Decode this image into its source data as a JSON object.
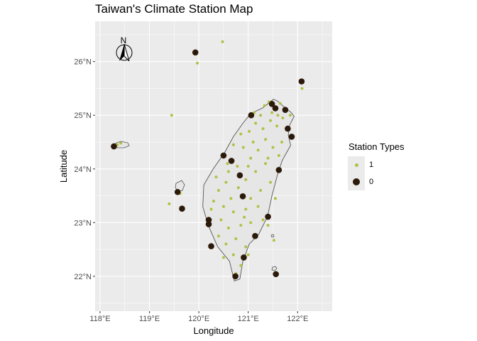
{
  "title": "Taiwan's Climate Station Map",
  "x_axis": {
    "title": "Longitude",
    "ticks": [
      "118°E",
      "119°E",
      "120°E",
      "121°E",
      "122°E"
    ]
  },
  "y_axis": {
    "title": "Latitude",
    "ticks": [
      "22°N",
      "23°N",
      "24°N",
      "25°N",
      "26°N"
    ]
  },
  "north_arrow": {
    "label": "N"
  },
  "legend": {
    "title": "Station Types",
    "items": [
      {
        "label": "1",
        "color": "#b2c045"
      },
      {
        "label": "0",
        "color": "#2b1a0a"
      }
    ]
  },
  "colors": {
    "panel": "#ebebeb",
    "grid": "#ffffff",
    "land": "#e6e6e6",
    "coast": "#555555",
    "type1": "#b2c045",
    "type0": "#2b1a0a"
  },
  "map_data": {
    "lon_range": [
      117.9,
      122.7
    ],
    "lat_range": [
      21.35,
      26.75
    ],
    "tick_lons": [
      118,
      119,
      120,
      121,
      122
    ],
    "tick_lats": [
      22,
      23,
      24,
      25,
      26
    ],
    "main_island_outline": [
      [
        121.51,
        25.3
      ],
      [
        121.6,
        25.26
      ],
      [
        121.72,
        25.16
      ],
      [
        121.86,
        25.06
      ],
      [
        121.93,
        24.98
      ],
      [
        121.84,
        24.82
      ],
      [
        121.81,
        24.63
      ],
      [
        121.86,
        24.44
      ],
      [
        121.69,
        24.16
      ],
      [
        121.6,
        23.92
      ],
      [
        121.48,
        23.5
      ],
      [
        121.39,
        23.11
      ],
      [
        121.21,
        22.78
      ],
      [
        121.02,
        22.6
      ],
      [
        120.89,
        22.28
      ],
      [
        120.83,
        21.95
      ],
      [
        120.72,
        21.91
      ],
      [
        120.62,
        22.28
      ],
      [
        120.38,
        22.55
      ],
      [
        120.19,
        22.95
      ],
      [
        120.08,
        23.3
      ],
      [
        120.1,
        23.7
      ],
      [
        120.29,
        24.0
      ],
      [
        120.52,
        24.3
      ],
      [
        120.7,
        24.6
      ],
      [
        120.89,
        24.85
      ],
      [
        121.05,
        25.03
      ],
      [
        121.3,
        25.14
      ],
      [
        121.51,
        25.3
      ]
    ],
    "stations_type0": [
      [
        119.93,
        26.17
      ],
      [
        122.08,
        25.63
      ],
      [
        121.48,
        25.21
      ],
      [
        121.55,
        25.13
      ],
      [
        121.75,
        25.1
      ],
      [
        121.06,
        25.0
      ],
      [
        121.8,
        24.75
      ],
      [
        121.88,
        24.6
      ],
      [
        120.5,
        24.25
      ],
      [
        120.66,
        24.15
      ],
      [
        120.83,
        23.88
      ],
      [
        120.89,
        23.49
      ],
      [
        121.62,
        23.98
      ],
      [
        118.28,
        24.42
      ],
      [
        119.57,
        23.57
      ],
      [
        119.66,
        23.26
      ],
      [
        120.2,
        23.05
      ],
      [
        120.25,
        22.56
      ],
      [
        121.4,
        23.11
      ],
      [
        121.14,
        22.75
      ],
      [
        120.91,
        22.35
      ],
      [
        120.74,
        22.0
      ],
      [
        121.56,
        22.04
      ],
      [
        120.2,
        22.97
      ]
    ],
    "stations_type1": [
      [
        121.42,
        25.25
      ],
      [
        121.33,
        25.18
      ],
      [
        121.12,
        25.05
      ],
      [
        121.6,
        25.0
      ],
      [
        121.7,
        24.95
      ],
      [
        121.58,
        24.8
      ],
      [
        121.45,
        24.9
      ],
      [
        121.3,
        24.75
      ],
      [
        121.15,
        24.85
      ],
      [
        121.02,
        24.7
      ],
      [
        121.35,
        24.55
      ],
      [
        121.5,
        24.4
      ],
      [
        121.68,
        24.5
      ],
      [
        121.2,
        24.35
      ],
      [
        121.05,
        24.2
      ],
      [
        120.9,
        24.4
      ],
      [
        120.78,
        24.05
      ],
      [
        120.6,
        23.95
      ],
      [
        120.95,
        23.8
      ],
      [
        121.15,
        23.95
      ],
      [
        121.35,
        24.1
      ],
      [
        121.45,
        23.75
      ],
      [
        121.25,
        23.6
      ],
      [
        121.05,
        23.45
      ],
      [
        120.8,
        23.65
      ],
      [
        120.55,
        23.75
      ],
      [
        120.4,
        23.6
      ],
      [
        120.3,
        23.4
      ],
      [
        120.5,
        23.3
      ],
      [
        120.7,
        23.2
      ],
      [
        120.95,
        23.25
      ],
      [
        121.2,
        23.3
      ],
      [
        121.3,
        23.05
      ],
      [
        121.05,
        23.0
      ],
      [
        120.85,
        22.95
      ],
      [
        120.6,
        22.9
      ],
      [
        120.4,
        22.75
      ],
      [
        120.55,
        22.6
      ],
      [
        120.75,
        22.7
      ],
      [
        120.95,
        22.55
      ],
      [
        120.7,
        22.4
      ],
      [
        120.85,
        22.2
      ],
      [
        120.75,
        22.05
      ],
      [
        120.65,
        23.45
      ],
      [
        120.45,
        23.05
      ],
      [
        120.25,
        23.25
      ],
      [
        120.35,
        23.85
      ],
      [
        120.7,
        24.45
      ],
      [
        120.85,
        24.65
      ],
      [
        121.1,
        24.5
      ],
      [
        121.25,
        25.0
      ],
      [
        121.48,
        25.05
      ],
      [
        121.65,
        25.22
      ],
      [
        121.85,
        25.0
      ],
      [
        121.4,
        24.2
      ],
      [
        121.55,
        23.45
      ],
      [
        121.4,
        22.95
      ],
      [
        121.15,
        22.75
      ],
      [
        120.58,
        24.1
      ],
      [
        121.0,
        24.05
      ],
      [
        119.45,
        25.0
      ],
      [
        118.42,
        24.48
      ],
      [
        118.35,
        24.45
      ],
      [
        119.55,
        23.58
      ],
      [
        119.62,
        23.54
      ],
      [
        119.4,
        23.35
      ],
      [
        119.97,
        25.97
      ],
      [
        120.48,
        26.37
      ],
      [
        121.52,
        22.67
      ],
      [
        121.55,
        22.07
      ],
      [
        122.09,
        25.5
      ],
      [
        121.62,
        24.25
      ],
      [
        120.92,
        23.1
      ],
      [
        120.5,
        22.35
      ],
      [
        121.0,
        22.4
      ]
    ]
  }
}
